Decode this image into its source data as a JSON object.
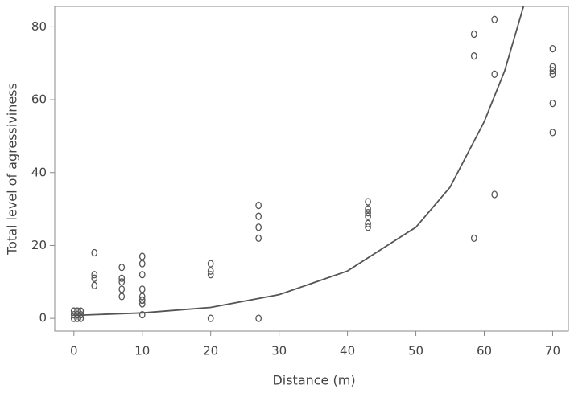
{
  "chart_data": {
    "type": "scatter",
    "xlabel": "Distance (m)",
    "ylabel": "Total level of agressiviness",
    "xlim": [
      -2.8,
      72.3
    ],
    "ylim": [
      -3.5,
      85.6
    ],
    "xticks": [
      0,
      10,
      20,
      30,
      40,
      50,
      60,
      70
    ],
    "yticks": [
      0,
      20,
      40,
      60,
      80
    ],
    "color": "#555555",
    "points": {
      "x": [
        0,
        0,
        0,
        0.5,
        0.5,
        0.5,
        1,
        1,
        1,
        3,
        3,
        3,
        3,
        7,
        7,
        7,
        7,
        7,
        10,
        10,
        10,
        10,
        10,
        10,
        10,
        10,
        10,
        20,
        20,
        20,
        20,
        27,
        27,
        27,
        27,
        27,
        43,
        43,
        43,
        43,
        43,
        43,
        58.5,
        58.5,
        58.5,
        61.5,
        61.5,
        61.5,
        70,
        70,
        70,
        70,
        70,
        70
      ],
      "y": [
        0,
        1,
        2,
        0,
        1,
        2,
        0,
        1,
        2,
        18,
        12,
        11,
        9,
        14,
        11,
        10,
        8,
        6,
        17,
        15,
        12,
        8,
        6,
        5,
        4,
        5,
        1,
        15,
        13,
        12,
        0,
        31,
        28,
        25,
        22,
        0,
        32,
        30,
        29,
        28,
        26,
        25,
        78,
        72,
        22,
        82,
        67,
        34,
        74,
        69,
        68,
        67,
        59,
        51
      ]
    },
    "fit": {
      "color": "#555555",
      "x": [
        0,
        10,
        20,
        30,
        40,
        50,
        55,
        60,
        63,
        65.8
      ],
      "y": [
        0.8,
        1.5,
        3,
        6.5,
        13,
        25,
        36,
        54,
        68,
        86
      ]
    }
  }
}
